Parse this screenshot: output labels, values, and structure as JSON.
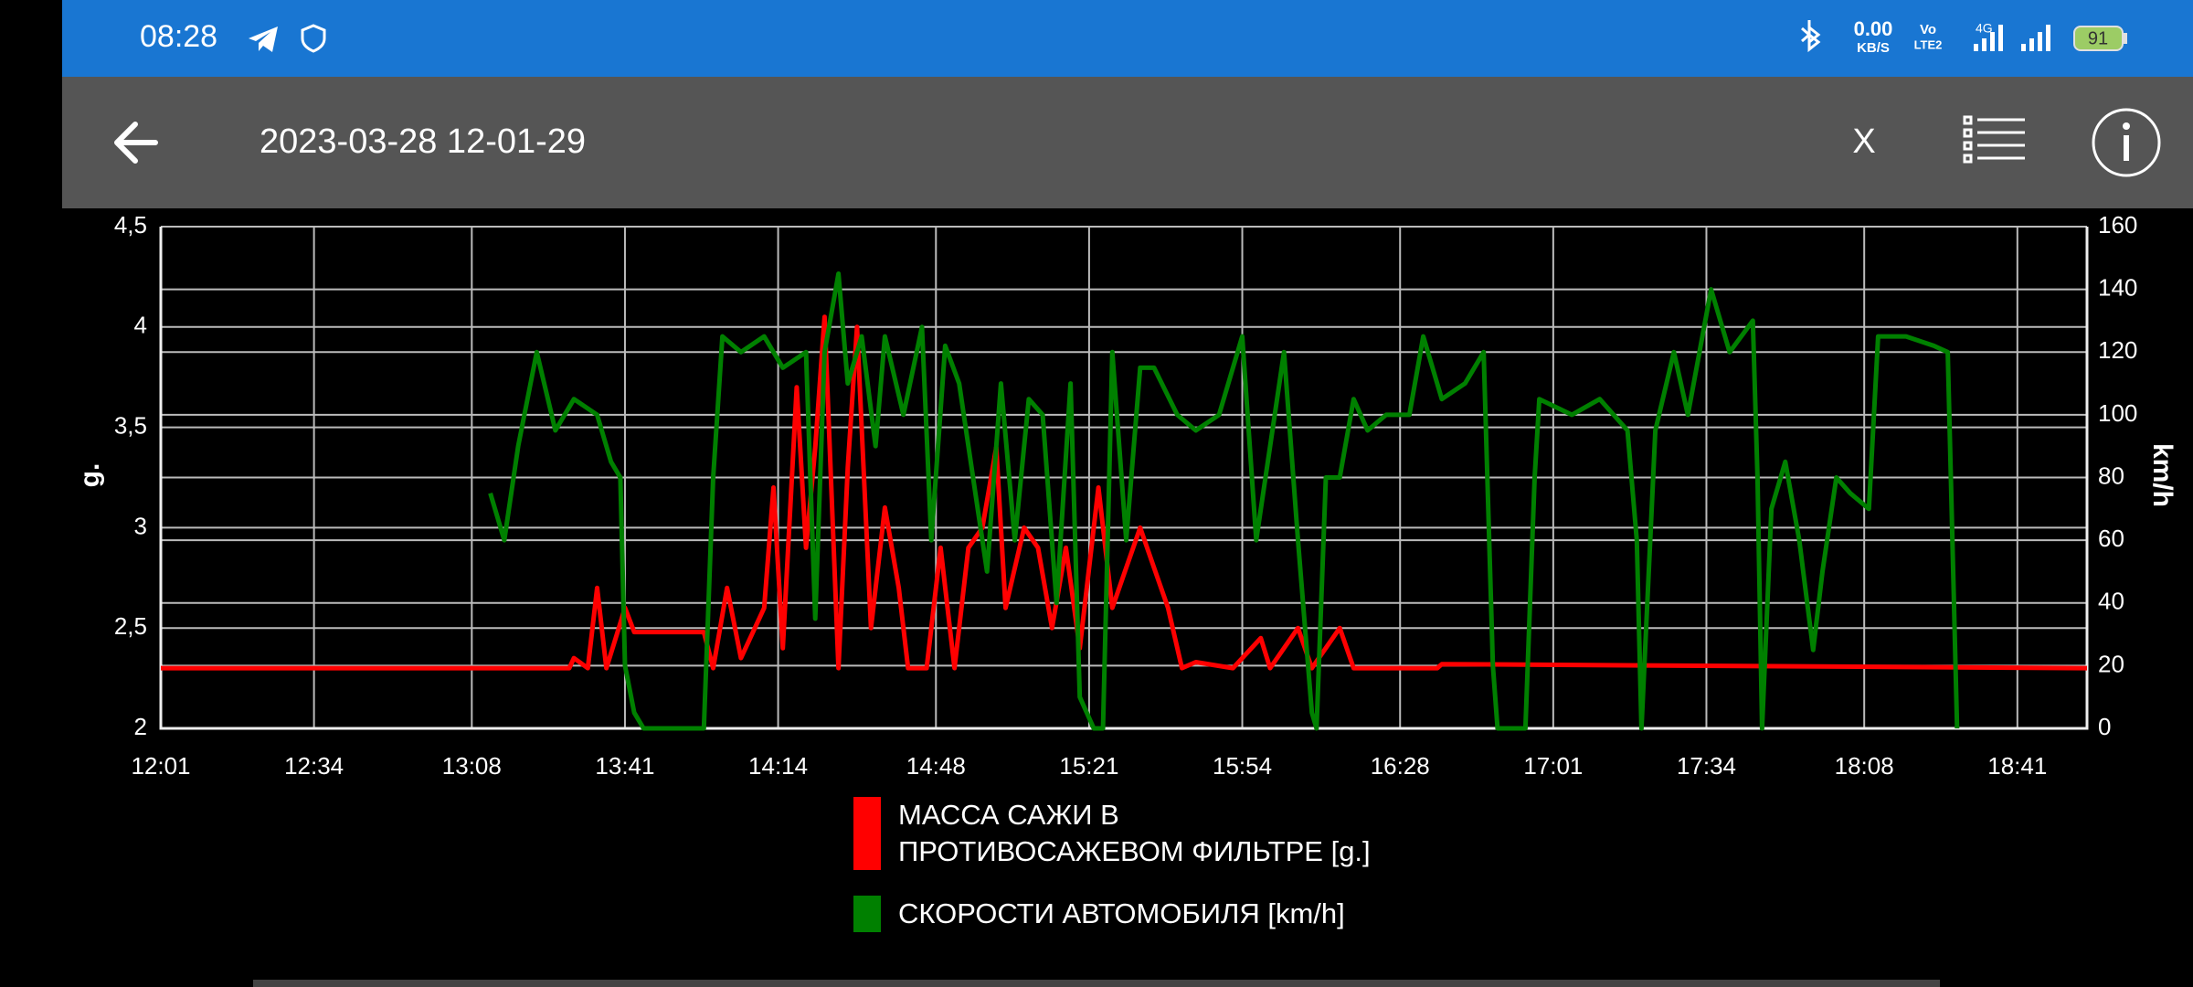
{
  "status_bar": {
    "time": "08:28",
    "net_speed": "0.00",
    "net_unit": "KB/S",
    "volte_top": "Vo",
    "volte_bottom": "LTE2",
    "network": "4G",
    "battery": "91"
  },
  "toolbar": {
    "title": "2023-03-28 12-01-29",
    "close": "X"
  },
  "chart_data": {
    "type": "line",
    "ylabel": "g.",
    "y2label": "km/h",
    "grid": true,
    "xlim": [
      "12:01",
      "18:56"
    ],
    "xticks": [
      "12:01",
      "12:34",
      "13:08",
      "13:41",
      "14:14",
      "14:48",
      "15:21",
      "15:54",
      "16:28",
      "17:01",
      "17:34",
      "18:08",
      "18:41"
    ],
    "ylim": [
      2,
      4.5
    ],
    "yticks": [
      2,
      {
        "value": 2.5,
        "label": "2,5"
      },
      3,
      {
        "value": 3.5,
        "label": "3,5"
      },
      4,
      {
        "value": 4.5,
        "label": "4,5"
      }
    ],
    "y2lim": [
      0,
      160
    ],
    "y2ticks": [
      0,
      20,
      40,
      60,
      80,
      100,
      120,
      140,
      160
    ],
    "series": [
      {
        "name": "МАССА САЖИ В ПРОТИВОСАЖЕВОМ ФИЛЬТРЕ [g.]",
        "color": "#ff0000",
        "x": [
          "12:01",
          "13:29",
          "13:30",
          "13:33",
          "13:35",
          "13:37",
          "13:39",
          "13:41",
          "13:43",
          "13:58",
          "14:00",
          "14:03",
          "14:06",
          "14:11",
          "14:13",
          "14:15",
          "14:18",
          "14:20",
          "14:22",
          "14:24",
          "14:27",
          "14:29",
          "14:31",
          "14:34",
          "14:37",
          "14:40",
          "14:42",
          "14:46",
          "14:49",
          "14:52",
          "14:55",
          "14:58",
          "15:01",
          "15:03",
          "15:07",
          "15:10",
          "15:13",
          "15:16",
          "15:19",
          "15:23",
          "15:26",
          "15:29",
          "15:32",
          "15:35",
          "15:38",
          "15:41",
          "15:44",
          "15:52",
          "15:58",
          "16:00",
          "16:06",
          "16:09",
          "16:15",
          "16:18",
          "16:36",
          "16:37",
          "18:56"
        ],
        "values": [
          2.3,
          2.3,
          2.35,
          2.3,
          2.7,
          2.3,
          2.45,
          2.6,
          2.48,
          2.48,
          2.3,
          2.7,
          2.35,
          2.6,
          3.2,
          2.4,
          3.7,
          2.9,
          3.4,
          4.05,
          2.3,
          3.3,
          4.0,
          2.5,
          3.1,
          2.7,
          2.3,
          2.3,
          2.9,
          2.3,
          2.9,
          3.0,
          3.4,
          2.6,
          3.0,
          2.9,
          2.5,
          2.9,
          2.4,
          3.2,
          2.6,
          2.8,
          3.0,
          2.8,
          2.6,
          2.3,
          2.33,
          2.3,
          2.45,
          2.3,
          2.5,
          2.3,
          2.5,
          2.3,
          2.3,
          2.32,
          2.3
        ]
      },
      {
        "name": "СКОРОСТИ АВТОМОБИЛЯ [km/h]",
        "color": "#008000",
        "axis": "y2",
        "x": [
          "13:12",
          "13:15",
          "13:18",
          "13:22",
          "13:26",
          "13:30",
          "13:35",
          "13:38",
          "13:40",
          "13:41",
          "13:43",
          "13:45",
          "13:58",
          "14:00",
          "14:02",
          "14:06",
          "14:11",
          "14:15",
          "14:20",
          "14:22",
          "14:24",
          "14:27",
          "14:29",
          "14:32",
          "14:35",
          "14:37",
          "14:41",
          "14:45",
          "14:47",
          "14:50",
          "14:53",
          "14:56",
          "14:59",
          "15:02",
          "15:05",
          "15:08",
          "15:11",
          "15:14",
          "15:17",
          "15:19",
          "15:22",
          "15:24",
          "15:26",
          "15:29",
          "15:32",
          "15:35",
          "15:40",
          "15:44",
          "15:49",
          "15:54",
          "15:57",
          "16:00",
          "16:03",
          "16:06",
          "16:09",
          "16:10",
          "16:12",
          "16:15",
          "16:18",
          "16:21",
          "16:25",
          "16:30",
          "16:33",
          "16:37",
          "16:42",
          "16:46",
          "16:48",
          "16:49",
          "16:55",
          "16:57",
          "16:58",
          "17:05",
          "17:11",
          "17:17",
          "17:19",
          "17:20",
          "17:23",
          "17:27",
          "17:30",
          "17:35",
          "17:39",
          "17:44",
          "17:45",
          "17:46",
          "17:48",
          "17:51",
          "17:54",
          "17:57",
          "17:59",
          "18:02",
          "18:05",
          "18:09",
          "18:11",
          "18:17",
          "18:23",
          "18:26",
          "18:28"
        ],
        "values": [
          75,
          60,
          90,
          120,
          95,
          105,
          100,
          85,
          80,
          20,
          5,
          0,
          0,
          80,
          125,
          120,
          125,
          115,
          120,
          35,
          120,
          145,
          110,
          125,
          90,
          125,
          100,
          128,
          60,
          122,
          110,
          80,
          50,
          110,
          60,
          105,
          100,
          40,
          110,
          10,
          0,
          0,
          120,
          60,
          115,
          115,
          100,
          95,
          100,
          125,
          60,
          90,
          120,
          60,
          5,
          0,
          80,
          80,
          105,
          95,
          100,
          100,
          125,
          105,
          110,
          120,
          20,
          0,
          0,
          80,
          105,
          100,
          105,
          95,
          60,
          0,
          95,
          120,
          100,
          140,
          120,
          130,
          80,
          0,
          70,
          85,
          60,
          25,
          50,
          80,
          75,
          70,
          125,
          125,
          122,
          120,
          0
        ]
      }
    ]
  }
}
